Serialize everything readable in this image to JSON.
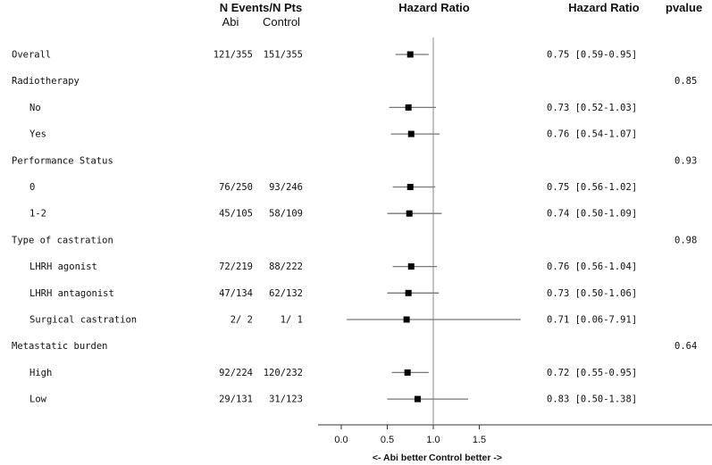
{
  "chart_data": {
    "type": "forest",
    "headers": {
      "events": "N Events/N Pts",
      "arm_a": "Abi",
      "arm_b": "Control",
      "hr_plot": "Hazard Ratio",
      "hr_text": "Hazard Ratio",
      "pvalue": "pvalue"
    },
    "rows": [
      {
        "label": "Overall",
        "indent": false,
        "abi": "121/355",
        "control": "151/355",
        "hr": 0.75,
        "lo": 0.59,
        "hi": 0.95,
        "hr_text": "0.75 [0.59-0.95]",
        "p": ""
      },
      {
        "label": "Radiotherapy",
        "indent": false,
        "abi": "",
        "control": "",
        "hr": null,
        "lo": null,
        "hi": null,
        "hr_text": "",
        "p": "0.85"
      },
      {
        "label": "No",
        "indent": true,
        "abi": "",
        "control": "",
        "hr": 0.73,
        "lo": 0.52,
        "hi": 1.03,
        "hr_text": "0.73 [0.52-1.03]",
        "p": ""
      },
      {
        "label": "Yes",
        "indent": true,
        "abi": "",
        "control": "",
        "hr": 0.76,
        "lo": 0.54,
        "hi": 1.07,
        "hr_text": "0.76 [0.54-1.07]",
        "p": ""
      },
      {
        "label": "Performance Status",
        "indent": false,
        "abi": "",
        "control": "",
        "hr": null,
        "lo": null,
        "hi": null,
        "hr_text": "",
        "p": "0.93"
      },
      {
        "label": "0",
        "indent": true,
        "abi": "76/250",
        "control": "93/246",
        "hr": 0.75,
        "lo": 0.56,
        "hi": 1.02,
        "hr_text": "0.75 [0.56-1.02]",
        "p": ""
      },
      {
        "label": "1-2",
        "indent": true,
        "abi": "45/105",
        "control": "58/109",
        "hr": 0.74,
        "lo": 0.5,
        "hi": 1.09,
        "hr_text": "0.74 [0.50-1.09]",
        "p": ""
      },
      {
        "label": "Type of castration",
        "indent": false,
        "abi": "",
        "control": "",
        "hr": null,
        "lo": null,
        "hi": null,
        "hr_text": "",
        "p": "0.98"
      },
      {
        "label": "LHRH agonist",
        "indent": true,
        "abi": "72/219",
        "control": "88/222",
        "hr": 0.76,
        "lo": 0.56,
        "hi": 1.04,
        "hr_text": "0.76 [0.56-1.04]",
        "p": ""
      },
      {
        "label": "LHRH antagonist",
        "indent": true,
        "abi": "47/134",
        "control": "62/132",
        "hr": 0.73,
        "lo": 0.5,
        "hi": 1.06,
        "hr_text": "0.73 [0.50-1.06]",
        "p": ""
      },
      {
        "label": "Surgical castration",
        "indent": true,
        "abi": "2/ 2",
        "control": "1/ 1",
        "hr": 0.71,
        "lo": 0.06,
        "hi": 7.91,
        "hr_text": "0.71 [0.06-7.91]",
        "p": ""
      },
      {
        "label": "Metastatic burden",
        "indent": false,
        "abi": "",
        "control": "",
        "hr": null,
        "lo": null,
        "hi": null,
        "hr_text": "",
        "p": "0.64"
      },
      {
        "label": "High",
        "indent": true,
        "abi": "92/224",
        "control": "120/232",
        "hr": 0.72,
        "lo": 0.55,
        "hi": 0.95,
        "hr_text": "0.72 [0.55-0.95]",
        "p": ""
      },
      {
        "label": "Low",
        "indent": true,
        "abi": "29/131",
        "control": "31/123",
        "hr": 0.83,
        "lo": 0.5,
        "hi": 1.38,
        "hr_text": "0.83 [0.50-1.38]",
        "p": ""
      }
    ],
    "x_axis": {
      "range": [
        -0.25,
        2.0
      ],
      "ticks": [
        0.0,
        0.5,
        1.0,
        1.5
      ],
      "tick_labels": [
        "0.0",
        "0.5",
        "1.0",
        "1.5"
      ],
      "reference_line": 1.0
    },
    "footer_left": "<- Abi better",
    "footer_right": "Control better ->",
    "colors": {
      "point": "#000000",
      "ci": "#777777",
      "axis": "#333333",
      "reference": "#888888"
    }
  }
}
